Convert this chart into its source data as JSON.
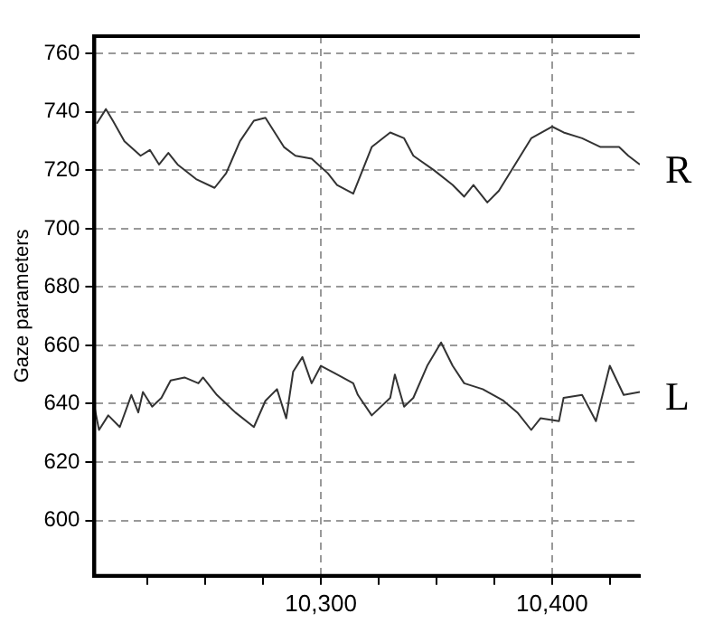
{
  "chart_data": {
    "type": "line",
    "ylabel": "Gaze parameters",
    "xlim": [
      10202,
      10438
    ],
    "ylim": [
      581,
      766
    ],
    "xticks": [
      {
        "value": 10225,
        "label": null
      },
      {
        "value": 10250,
        "label": null
      },
      {
        "value": 10275,
        "label": null
      },
      {
        "value": 10300,
        "label": "10,300"
      },
      {
        "value": 10325,
        "label": null
      },
      {
        "value": 10350,
        "label": null
      },
      {
        "value": 10375,
        "label": null
      },
      {
        "value": 10400,
        "label": "10,400"
      },
      {
        "value": 10425,
        "label": null
      }
    ],
    "yticks": [
      600,
      620,
      640,
      660,
      680,
      700,
      720,
      740,
      760
    ],
    "grid": true,
    "legend": false,
    "marker": "none",
    "line_style": "solid",
    "series": [
      {
        "name": "R",
        "color": "#333333",
        "x": [
          10203,
          10207,
          10210,
          10215,
          10222,
          10226,
          10230,
          10234,
          10238,
          10246,
          10254,
          10259,
          10265,
          10271,
          10276,
          10284,
          10289,
          10296,
          10303,
          10307,
          10314,
          10322,
          10330,
          10336,
          10340,
          10349,
          10357,
          10362,
          10366,
          10372,
          10377,
          10384,
          10391,
          10400,
          10405,
          10413,
          10421,
          10429,
          10433,
          10438
        ],
        "values": [
          736,
          741,
          737,
          730,
          725,
          727,
          722,
          726,
          722,
          717,
          714,
          719,
          730,
          737,
          738,
          728,
          725,
          724,
          719,
          715,
          712,
          728,
          733,
          731,
          725,
          720,
          715,
          711,
          715,
          709,
          713,
          722,
          731,
          735,
          733,
          731,
          728,
          728,
          725,
          722
        ]
      },
      {
        "name": "L",
        "color": "#333333",
        "x": [
          10202,
          10204,
          10208,
          10213,
          10218,
          10221,
          10223,
          10227,
          10231,
          10235,
          10241,
          10247,
          10249,
          10255,
          10263,
          10271,
          10276,
          10281,
          10285,
          10288,
          10292,
          10296,
          10300,
          10307,
          10314,
          10316,
          10322,
          10330,
          10332,
          10336,
          10340,
          10346,
          10352,
          10357,
          10362,
          10370,
          10379,
          10385,
          10391,
          10395,
          10403,
          10405,
          10413,
          10419,
          10425,
          10431,
          10438
        ],
        "values": [
          639,
          631,
          636,
          632,
          643,
          637,
          644,
          639,
          642,
          648,
          649,
          647,
          649,
          643,
          637,
          632,
          641,
          645,
          635,
          651,
          656,
          647,
          653,
          650,
          647,
          643,
          636,
          642,
          650,
          639,
          642,
          653,
          661,
          653,
          647,
          645,
          641,
          637,
          631,
          635,
          634,
          642,
          643,
          634,
          653,
          643,
          644
        ]
      }
    ]
  }
}
